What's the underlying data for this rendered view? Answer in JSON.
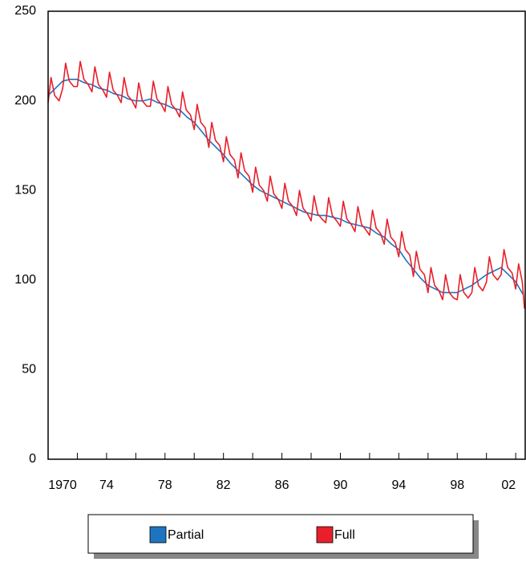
{
  "chart_data": {
    "type": "line",
    "xlim": [
      1970,
      2002.65
    ],
    "ylim": [
      0,
      250
    ],
    "yticks": [
      0,
      50,
      100,
      150,
      200,
      250
    ],
    "xticks": [
      {
        "value": 1970,
        "label": "1970"
      },
      {
        "value": 1974,
        "label": "74"
      },
      {
        "value": 1978,
        "label": "78"
      },
      {
        "value": 1982,
        "label": "82"
      },
      {
        "value": 1986,
        "label": "86"
      },
      {
        "value": 1990,
        "label": "90"
      },
      {
        "value": 1994,
        "label": "94"
      },
      {
        "value": 1998,
        "label": "98"
      },
      {
        "value": 2002,
        "label": "02"
      }
    ],
    "xminorticks": [
      1972,
      1976,
      1980,
      1984,
      1988,
      1992,
      1996,
      2000
    ],
    "series": [
      {
        "name": "Partial",
        "color": "#1f74c0",
        "x": [
          1970,
          1970.5,
          1971,
          1971.5,
          1972,
          1972.5,
          1973,
          1973.5,
          1974,
          1974.5,
          1975,
          1975.5,
          1976,
          1976.5,
          1977,
          1977.5,
          1978,
          1978.5,
          1979,
          1979.5,
          1980,
          1980.5,
          1981,
          1981.5,
          1982,
          1982.5,
          1983,
          1983.5,
          1984,
          1984.5,
          1985,
          1985.5,
          1986,
          1986.5,
          1987,
          1987.5,
          1988,
          1988.5,
          1989,
          1989.5,
          1990,
          1990.5,
          1991,
          1991.5,
          1992,
          1992.5,
          1993,
          1993.5,
          1994,
          1994.5,
          1995,
          1995.5,
          1996,
          1996.5,
          1997,
          1997.5,
          1998,
          1998.5,
          1999,
          1999.5,
          2000,
          2000.5,
          2001,
          2001.5,
          2002,
          2002.5
        ],
        "values": [
          203,
          207,
          211,
          212,
          212,
          210,
          209,
          207,
          206,
          204,
          203,
          201,
          200,
          200,
          201,
          199,
          198,
          196,
          195,
          191,
          188,
          183,
          178,
          174,
          170,
          165,
          161,
          157,
          153,
          150,
          148,
          146,
          144,
          142,
          140,
          138,
          137,
          136,
          136,
          135,
          134,
          132,
          131,
          130,
          129,
          126,
          124,
          120,
          117,
          111,
          106,
          101,
          97,
          95,
          93,
          93,
          93,
          95,
          97,
          100,
          103,
          105,
          107,
          103,
          99,
          92
        ]
      },
      {
        "name": "Full",
        "color": "#e8202a",
        "x": [
          1970,
          1970.2,
          1970.45,
          1970.75,
          1971,
          1971.2,
          1971.45,
          1971.75,
          1972,
          1972.2,
          1972.45,
          1972.75,
          1973,
          1973.2,
          1973.45,
          1973.75,
          1974,
          1974.2,
          1974.45,
          1974.75,
          1975,
          1975.2,
          1975.45,
          1975.75,
          1976,
          1976.2,
          1976.45,
          1976.75,
          1977,
          1977.2,
          1977.45,
          1977.75,
          1978,
          1978.2,
          1978.45,
          1978.75,
          1979,
          1979.2,
          1979.45,
          1979.75,
          1980,
          1980.2,
          1980.45,
          1980.75,
          1981,
          1981.2,
          1981.45,
          1981.75,
          1982,
          1982.2,
          1982.45,
          1982.75,
          1983,
          1983.2,
          1983.45,
          1983.75,
          1984,
          1984.2,
          1984.45,
          1984.75,
          1985,
          1985.2,
          1985.45,
          1985.75,
          1986,
          1986.2,
          1986.45,
          1986.75,
          1987,
          1987.2,
          1987.45,
          1987.75,
          1988,
          1988.2,
          1988.45,
          1988.75,
          1989,
          1989.2,
          1989.45,
          1989.75,
          1990,
          1990.2,
          1990.45,
          1990.75,
          1991,
          1991.2,
          1991.45,
          1991.75,
          1992,
          1992.2,
          1992.45,
          1992.75,
          1993,
          1993.2,
          1993.45,
          1993.75,
          1994,
          1994.2,
          1994.45,
          1994.75,
          1995,
          1995.2,
          1995.45,
          1995.75,
          1996,
          1996.2,
          1996.45,
          1996.75,
          1997,
          1997.2,
          1997.45,
          1997.75,
          1998,
          1998.2,
          1998.45,
          1998.75,
          1999,
          1999.2,
          1999.45,
          1999.75,
          2000,
          2000.2,
          2000.45,
          2000.75,
          2001,
          2001.2,
          2001.45,
          2001.75,
          2002,
          2002.2,
          2002.45,
          2002.6
        ],
        "values": [
          199,
          213,
          203,
          200,
          207,
          221,
          211,
          208,
          208,
          222,
          212,
          209,
          205,
          219,
          209,
          206,
          202,
          216,
          206,
          203,
          199,
          213,
          203,
          200,
          196,
          210,
          200,
          197,
          197,
          211,
          201,
          198,
          194,
          208,
          198,
          195,
          191,
          205,
          195,
          192,
          184,
          198,
          188,
          185,
          174,
          188,
          178,
          175,
          166,
          180,
          170,
          167,
          157,
          171,
          161,
          158,
          149,
          163,
          153,
          150,
          144,
          158,
          148,
          145,
          140,
          154,
          144,
          141,
          136,
          150,
          140,
          137,
          133,
          147,
          137,
          134,
          132,
          146,
          136,
          133,
          130,
          144,
          134,
          131,
          127,
          141,
          131,
          128,
          125,
          139,
          129,
          126,
          120,
          134,
          124,
          121,
          113,
          127,
          117,
          114,
          102,
          116,
          106,
          103,
          93,
          107,
          97,
          94,
          89,
          103,
          93,
          90,
          89,
          103,
          93,
          90,
          93,
          107,
          97,
          94,
          99,
          113,
          103,
          100,
          103,
          117,
          107,
          104,
          95,
          109,
          99,
          84
        ]
      }
    ]
  }
}
